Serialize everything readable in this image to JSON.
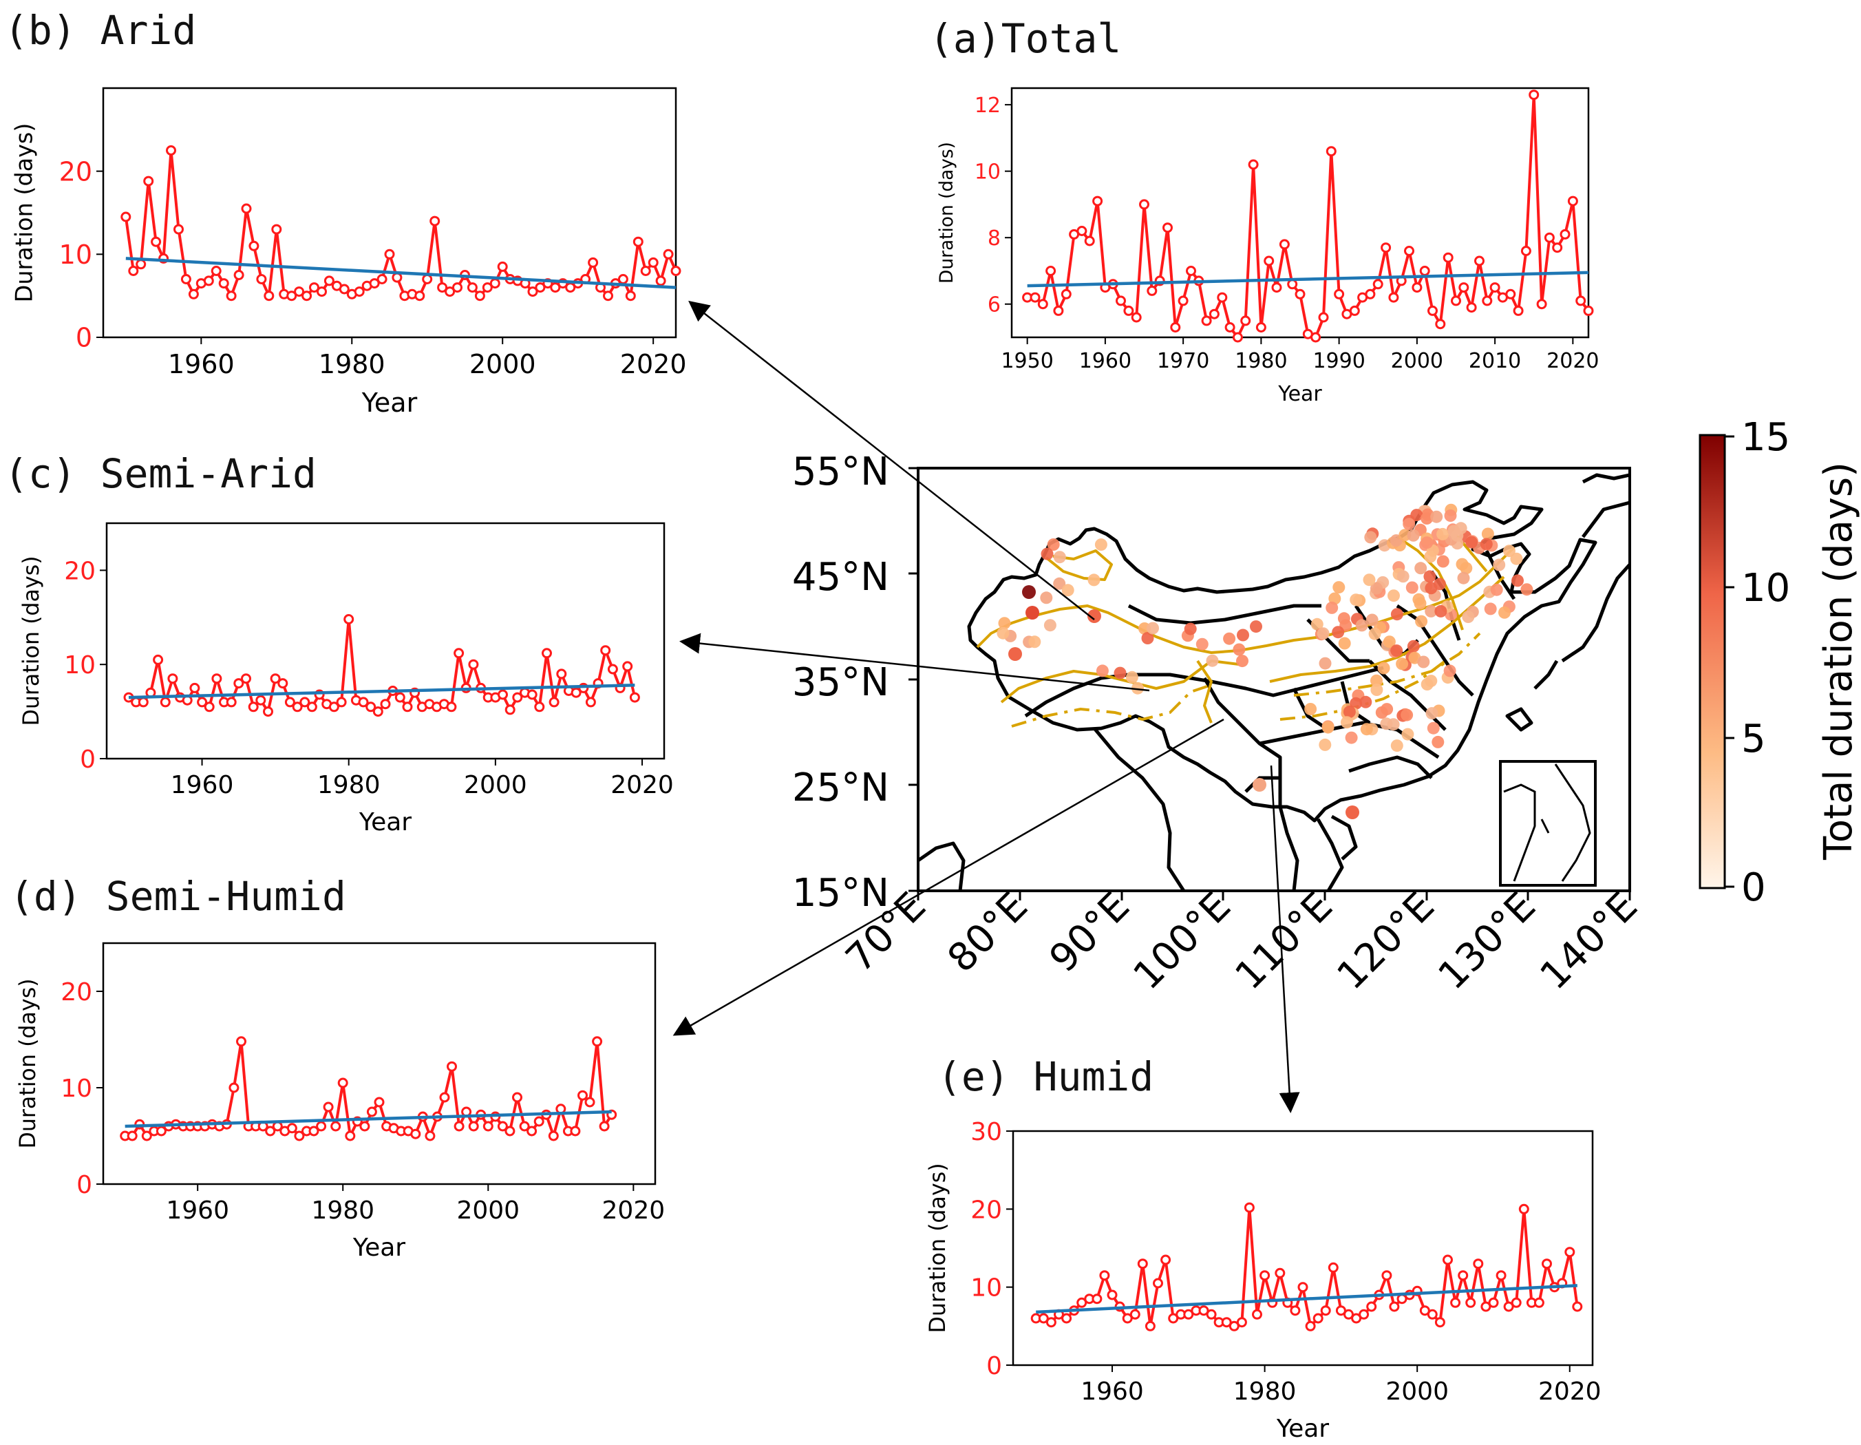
{
  "colors": {
    "series": "#ff1a1a",
    "trend": "#1f77b4",
    "region": "#e0a800",
    "border": "#000000",
    "tick_red": "#ff2020"
  },
  "panels": [
    {
      "id": "a",
      "title": "(a)Total",
      "ylabel": "Duration (days)",
      "xlabel": "Year",
      "ylim": [
        5,
        12.5
      ],
      "xlim": [
        1948,
        2022
      ],
      "yticks": [
        6,
        8,
        10,
        12
      ],
      "xticks": [
        1950,
        1960,
        1970,
        1980,
        1990,
        2000,
        2010,
        2020
      ],
      "chart_data": {
        "type": "line",
        "x_start": 1950,
        "values": [
          6.2,
          6.2,
          6.0,
          7.0,
          5.8,
          6.3,
          8.1,
          8.2,
          7.9,
          9.1,
          6.5,
          6.6,
          6.1,
          5.8,
          5.6,
          9.0,
          6.4,
          6.7,
          8.3,
          5.3,
          6.1,
          7.0,
          6.7,
          5.5,
          5.7,
          6.2,
          5.3,
          5.0,
          5.5,
          10.2,
          5.3,
          7.3,
          6.5,
          7.8,
          6.6,
          6.3,
          5.1,
          5.0,
          5.6,
          10.6,
          6.3,
          5.7,
          5.8,
          6.2,
          6.3,
          6.6,
          7.7,
          6.2,
          6.7,
          7.6,
          6.5,
          7.0,
          5.8,
          5.4,
          7.4,
          6.1,
          6.5,
          5.9,
          7.3,
          6.1,
          6.5,
          6.2,
          6.3,
          5.8,
          7.6,
          12.3,
          6.0,
          8.0,
          7.7,
          8.1,
          9.1,
          6.1,
          5.8
        ],
        "trend": [
          6.55,
          6.95
        ]
      }
    },
    {
      "id": "b",
      "title": "(b) Arid",
      "ylabel": "Duration (days)",
      "xlabel": "Year",
      "ylim": [
        0,
        30
      ],
      "xlim": [
        1947,
        2023
      ],
      "yticks": [
        0,
        10,
        20
      ],
      "xticks": [
        1960,
        1980,
        2000,
        2020
      ],
      "chart_data": {
        "type": "line",
        "x_start": 1950,
        "values": [
          14.5,
          8.0,
          8.8,
          18.8,
          11.5,
          9.5,
          22.5,
          13.0,
          7.0,
          5.2,
          6.5,
          6.8,
          8.0,
          6.5,
          5.0,
          7.5,
          15.5,
          11.0,
          7.0,
          5.0,
          13.0,
          5.2,
          5.0,
          5.5,
          5.0,
          6.0,
          5.5,
          6.8,
          6.2,
          5.8,
          5.2,
          5.5,
          6.2,
          6.5,
          7.0,
          10.0,
          7.2,
          5.0,
          5.2,
          5.0,
          7.0,
          14.0,
          6.0,
          5.5,
          6.0,
          7.5,
          6.0,
          5.0,
          6.0,
          6.5,
          8.5,
          7.0,
          6.8,
          6.5,
          5.5,
          6.0,
          6.5,
          6.0,
          6.5,
          6.0,
          6.5,
          7.0,
          9.0,
          6.0,
          5.0,
          6.5,
          7.0,
          5.0,
          11.5,
          8.0,
          9.0,
          6.8,
          10.0,
          8.0
        ],
        "trend": [
          9.5,
          6.0
        ]
      }
    },
    {
      "id": "c",
      "title": "(c) Semi-Arid",
      "ylabel": "Duration (days)",
      "xlabel": "Year",
      "ylim": [
        0,
        25
      ],
      "xlim": [
        1947,
        2023
      ],
      "yticks": [
        0,
        10,
        20
      ],
      "xticks": [
        1960,
        1980,
        2000,
        2020
      ],
      "chart_data": {
        "type": "line",
        "x_start": 1950,
        "values": [
          6.5,
          6.0,
          6.0,
          7.0,
          10.5,
          6.0,
          8.5,
          6.5,
          6.2,
          7.5,
          6.0,
          5.5,
          8.5,
          6.0,
          6.0,
          8.0,
          8.5,
          5.5,
          6.2,
          5.0,
          8.5,
          8.0,
          6.0,
          5.5,
          6.0,
          5.5,
          6.8,
          5.8,
          5.5,
          6.0,
          14.8,
          6.2,
          6.0,
          5.5,
          5.0,
          5.8,
          7.2,
          6.5,
          5.5,
          7.0,
          5.5,
          5.8,
          5.5,
          5.8,
          5.5,
          11.2,
          7.5,
          10.0,
          7.5,
          6.5,
          6.5,
          6.8,
          5.2,
          6.5,
          7.0,
          6.8,
          5.5,
          11.2,
          6.0,
          9.0,
          7.2,
          7.0,
          7.5,
          6.0,
          8.0,
          11.5,
          9.5,
          7.5,
          9.8,
          6.5
        ],
        "trend": [
          6.5,
          7.8
        ]
      }
    },
    {
      "id": "d",
      "title": "(d) Semi-Humid",
      "ylabel": "Duration (days)",
      "xlabel": "Year",
      "ylim": [
        0,
        25
      ],
      "xlim": [
        1947,
        2023
      ],
      "yticks": [
        0,
        10,
        20
      ],
      "xticks": [
        1960,
        1980,
        2000,
        2020
      ],
      "chart_data": {
        "type": "line",
        "x_start": 1950,
        "values": [
          5.0,
          5.0,
          6.2,
          5.0,
          5.5,
          5.5,
          6.0,
          6.2,
          6.0,
          6.0,
          6.0,
          6.0,
          6.2,
          6.0,
          6.2,
          10.0,
          14.8,
          6.0,
          6.0,
          6.0,
          5.5,
          6.0,
          5.5,
          5.8,
          5.0,
          5.5,
          5.5,
          6.0,
          8.0,
          6.0,
          10.5,
          5.0,
          6.5,
          6.0,
          7.5,
          8.5,
          6.0,
          5.8,
          5.5,
          5.5,
          5.2,
          7.0,
          5.0,
          7.0,
          9.0,
          12.2,
          6.0,
          7.5,
          6.0,
          7.2,
          6.0,
          7.0,
          6.0,
          5.5,
          9.0,
          6.0,
          5.5,
          6.5,
          7.2,
          5.0,
          7.8,
          5.5,
          5.5,
          9.2,
          8.5,
          14.8,
          6.0,
          7.2
        ],
        "trend": [
          6.0,
          7.5
        ]
      }
    },
    {
      "id": "e",
      "title": "(e) Humid",
      "ylabel": "Duration (days)",
      "xlabel": "Year",
      "ylim": [
        0,
        30
      ],
      "xlim": [
        1947,
        2023
      ],
      "yticks": [
        0,
        10,
        20,
        30
      ],
      "xticks": [
        1960,
        1980,
        2000,
        2020
      ],
      "chart_data": {
        "type": "line",
        "x_start": 1950,
        "values": [
          6.0,
          6.0,
          5.5,
          6.5,
          6.0,
          7.0,
          8.0,
          8.5,
          8.5,
          11.5,
          9.0,
          7.5,
          6.0,
          6.5,
          13.0,
          5.0,
          10.5,
          13.5,
          6.0,
          6.5,
          6.5,
          7.0,
          7.0,
          6.5,
          5.5,
          5.5,
          5.0,
          5.5,
          20.2,
          6.5,
          11.5,
          8.0,
          11.8,
          8.0,
          7.0,
          10.0,
          5.0,
          6.0,
          7.0,
          12.5,
          7.0,
          6.5,
          6.0,
          6.5,
          7.5,
          9.0,
          11.5,
          7.5,
          8.5,
          9.0,
          9.5,
          7.0,
          6.5,
          5.5,
          13.5,
          8.0,
          11.5,
          8.0,
          13.0,
          7.5,
          8.0,
          11.5,
          7.5,
          8.0,
          20.0,
          8.0,
          8.0,
          13.0,
          10.0,
          10.5,
          14.5,
          7.5
        ],
        "trend": [
          6.8,
          10.2
        ]
      }
    }
  ],
  "map": {
    "lat_labels": [
      "55°N",
      "45°N",
      "35°N",
      "25°N",
      "15°N"
    ],
    "lon_labels": [
      "70°E",
      "80°E",
      "90°E",
      "100°E",
      "110°E",
      "120°E",
      "130°E",
      "140°E"
    ],
    "colorbar": {
      "label": "Total duration (days)",
      "ticks": [
        "15",
        "10",
        "5",
        "0"
      ],
      "range": [
        0,
        15
      ]
    }
  }
}
